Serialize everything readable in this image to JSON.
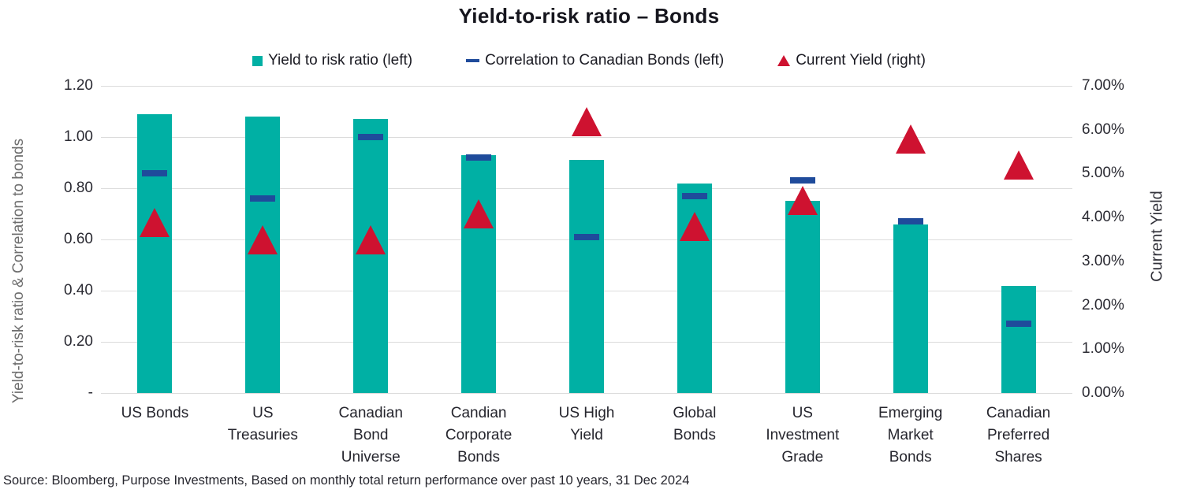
{
  "chart": {
    "title": "Yield-to-risk ratio – Bonds",
    "source": "Source: Bloomberg, Purpose Investments, Based on monthly total return performance over past 10 years, 31 Dec 2024"
  },
  "legend": [
    {
      "label": "Yield to risk ratio (left)",
      "marker": "square-icon",
      "color": "#00b0a4"
    },
    {
      "label": "Correlation to Canadian Bonds (left)",
      "marker": "dash-icon",
      "color": "#1f4b9b"
    },
    {
      "label": "Current Yield (right)",
      "marker": "triangle-icon",
      "color": "#ce1230"
    }
  ],
  "chart_data": {
    "type": "bar",
    "title": "Yield-to-risk ratio – Bonds",
    "categories": [
      "US Bonds",
      "US Treasuries",
      "Canadian Bond Universe",
      "Candian Corporate Bonds",
      "US High Yield",
      "Global Bonds",
      "US Investment Grade",
      "Emerging Market Bonds",
      "Canadian Preferred Shares"
    ],
    "series": [
      {
        "name": "Yield to risk ratio (left)",
        "type": "bar",
        "axis": "left",
        "color": "#00b0a4",
        "values": [
          1.09,
          1.08,
          1.07,
          0.93,
          0.91,
          0.82,
          0.75,
          0.66,
          0.42
        ]
      },
      {
        "name": "Correlation to Canadian Bonds (left)",
        "type": "dash-marker",
        "axis": "left",
        "color": "#1f4b9b",
        "values": [
          0.86,
          0.76,
          1.0,
          0.92,
          0.61,
          0.77,
          0.83,
          0.67,
          0.27
        ]
      },
      {
        "name": "Current Yield (right)",
        "type": "triangle-marker",
        "axis": "right",
        "unit": "%",
        "color": "#ce1230",
        "values": [
          3.9,
          3.5,
          3.5,
          4.1,
          6.2,
          3.8,
          4.4,
          5.8,
          5.2
        ]
      }
    ],
    "left_axis": {
      "label": "Yield-to-risk ratio & Correlation to bonds",
      "min": 0,
      "max": 1.2,
      "ticks": [
        "1.20",
        "1.00",
        "0.80",
        "0.60",
        "0.40",
        "0.20",
        "-"
      ]
    },
    "right_axis": {
      "label": "Current Yield",
      "min": 0,
      "max": 7,
      "ticks": [
        "7.00%",
        "6.00%",
        "5.00%",
        "4.00%",
        "3.00%",
        "2.00%",
        "1.00%",
        "0.00%"
      ]
    },
    "grid": true,
    "legend_position": "top",
    "gridline_color": "#dcdcdc"
  }
}
